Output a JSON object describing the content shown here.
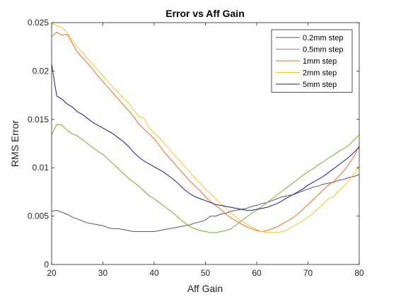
{
  "chart_data": {
    "type": "line",
    "title": "Error vs Aff Gain",
    "xlabel": "Aff Gain",
    "ylabel": "RMS Error",
    "xlim": [
      20,
      80
    ],
    "ylim": [
      0,
      0.025
    ],
    "xticks": [
      "20",
      "30",
      "40",
      "50",
      "60",
      "70",
      "80"
    ],
    "yticks": [
      "0",
      "0.005",
      "0.01",
      "0.015",
      "0.02",
      "0.025"
    ],
    "grid": false,
    "legend_position": "top-right",
    "series": [
      {
        "name": "0.2mm step",
        "color": "#6b4a6b",
        "points": [
          [
            20,
            0.0055
          ],
          [
            21,
            0.0056
          ],
          [
            22,
            0.0054
          ],
          [
            23,
            0.0052
          ],
          [
            24,
            0.0049
          ],
          [
            25,
            0.0047
          ],
          [
            26,
            0.0045
          ],
          [
            27,
            0.0043
          ],
          [
            28,
            0.0042
          ],
          [
            29,
            0.0041
          ],
          [
            30,
            0.004
          ],
          [
            31,
            0.0038
          ],
          [
            32,
            0.0037
          ],
          [
            33,
            0.0037
          ],
          [
            34,
            0.0036
          ],
          [
            35,
            0.0035
          ],
          [
            36,
            0.0034
          ],
          [
            37,
            0.0034
          ],
          [
            38,
            0.0034
          ],
          [
            39,
            0.0034
          ],
          [
            40,
            0.0034
          ],
          [
            41,
            0.0035
          ],
          [
            42,
            0.0036
          ],
          [
            43,
            0.0037
          ],
          [
            44,
            0.0038
          ],
          [
            45,
            0.0039
          ],
          [
            46,
            0.004
          ],
          [
            47,
            0.0041
          ],
          [
            48,
            0.0043
          ],
          [
            49,
            0.0044
          ],
          [
            50,
            0.0046
          ],
          [
            51,
            0.005
          ],
          [
            52,
            0.005
          ],
          [
            53,
            0.0052
          ],
          [
            54,
            0.0053
          ],
          [
            55,
            0.0055
          ],
          [
            56,
            0.0056
          ],
          [
            57,
            0.0057
          ],
          [
            58,
            0.0058
          ],
          [
            59,
            0.006
          ],
          [
            60,
            0.0061
          ],
          [
            61,
            0.0063
          ],
          [
            62,
            0.0064
          ],
          [
            63,
            0.0066
          ],
          [
            64,
            0.0068
          ],
          [
            65,
            0.007
          ],
          [
            66,
            0.0071
          ],
          [
            67,
            0.0072
          ],
          [
            68,
            0.0074
          ],
          [
            69,
            0.0076
          ],
          [
            70,
            0.0078
          ],
          [
            71,
            0.008
          ],
          [
            72,
            0.0081
          ],
          [
            73,
            0.0083
          ],
          [
            74,
            0.0084
          ],
          [
            75,
            0.0085
          ],
          [
            76,
            0.0087
          ],
          [
            77,
            0.0088
          ],
          [
            78,
            0.009
          ],
          [
            79,
            0.0091
          ],
          [
            80,
            0.0093
          ]
        ]
      },
      {
        "name": "0.5mm step",
        "color": "#77ac30",
        "points": [
          [
            20,
            0.0134
          ],
          [
            21,
            0.0145
          ],
          [
            22,
            0.0144
          ],
          [
            23,
            0.0139
          ],
          [
            24,
            0.0135
          ],
          [
            25,
            0.0133
          ],
          [
            26,
            0.0129
          ],
          [
            27,
            0.0125
          ],
          [
            28,
            0.0121
          ],
          [
            29,
            0.0117
          ],
          [
            30,
            0.0114
          ],
          [
            31,
            0.0109
          ],
          [
            32,
            0.0104
          ],
          [
            33,
            0.0099
          ],
          [
            34,
            0.0094
          ],
          [
            35,
            0.0089
          ],
          [
            36,
            0.0085
          ],
          [
            37,
            0.0081
          ],
          [
            38,
            0.0076
          ],
          [
            39,
            0.0071
          ],
          [
            40,
            0.0068
          ],
          [
            41,
            0.0064
          ],
          [
            42,
            0.006
          ],
          [
            43,
            0.0056
          ],
          [
            44,
            0.0052
          ],
          [
            45,
            0.0047
          ],
          [
            46,
            0.0043
          ],
          [
            47,
            0.0039
          ],
          [
            48,
            0.0037
          ],
          [
            49,
            0.0035
          ],
          [
            50,
            0.0034
          ],
          [
            51,
            0.0033
          ],
          [
            52,
            0.0033
          ],
          [
            53,
            0.0034
          ],
          [
            54,
            0.0035
          ],
          [
            55,
            0.0037
          ],
          [
            56,
            0.0041
          ],
          [
            57,
            0.0045
          ],
          [
            58,
            0.0049
          ],
          [
            59,
            0.0053
          ],
          [
            60,
            0.0056
          ],
          [
            61,
            0.006
          ],
          [
            62,
            0.0064
          ],
          [
            63,
            0.0068
          ],
          [
            64,
            0.0072
          ],
          [
            65,
            0.0076
          ],
          [
            66,
            0.008
          ],
          [
            67,
            0.0084
          ],
          [
            68,
            0.0088
          ],
          [
            69,
            0.0092
          ],
          [
            70,
            0.0096
          ],
          [
            71,
            0.0099
          ],
          [
            72,
            0.0103
          ],
          [
            73,
            0.0106
          ],
          [
            74,
            0.011
          ],
          [
            75,
            0.0113
          ],
          [
            76,
            0.0117
          ],
          [
            77,
            0.012
          ],
          [
            78,
            0.0123
          ],
          [
            79,
            0.0129
          ],
          [
            80,
            0.0134
          ]
        ]
      },
      {
        "name": "1mm step",
        "color": "#f26b2a",
        "points": [
          [
            20,
            0.0236
          ],
          [
            21,
            0.024
          ],
          [
            22,
            0.0237
          ],
          [
            23,
            0.0238
          ],
          [
            24,
            0.0229
          ],
          [
            25,
            0.022
          ],
          [
            26,
            0.0214
          ],
          [
            27,
            0.0208
          ],
          [
            28,
            0.0202
          ],
          [
            29,
            0.0195
          ],
          [
            30,
            0.0189
          ],
          [
            31,
            0.0183
          ],
          [
            32,
            0.0177
          ],
          [
            33,
            0.0171
          ],
          [
            34,
            0.0165
          ],
          [
            35,
            0.0159
          ],
          [
            36,
            0.0153
          ],
          [
            37,
            0.0145
          ],
          [
            38,
            0.014
          ],
          [
            39,
            0.0135
          ],
          [
            40,
            0.013
          ],
          [
            41,
            0.0123
          ],
          [
            42,
            0.0116
          ],
          [
            43,
            0.011
          ],
          [
            44,
            0.0104
          ],
          [
            45,
            0.0098
          ],
          [
            46,
            0.0092
          ],
          [
            47,
            0.0086
          ],
          [
            48,
            0.0081
          ],
          [
            49,
            0.0076
          ],
          [
            50,
            0.007
          ],
          [
            51,
            0.0065
          ],
          [
            52,
            0.0061
          ],
          [
            53,
            0.0057
          ],
          [
            54,
            0.0052
          ],
          [
            55,
            0.0048
          ],
          [
            56,
            0.0045
          ],
          [
            57,
            0.0042
          ],
          [
            58,
            0.0039
          ],
          [
            59,
            0.0037
          ],
          [
            60,
            0.0035
          ],
          [
            61,
            0.0034
          ],
          [
            62,
            0.0035
          ],
          [
            63,
            0.0037
          ],
          [
            64,
            0.0039
          ],
          [
            65,
            0.0042
          ],
          [
            66,
            0.0045
          ],
          [
            67,
            0.0048
          ],
          [
            68,
            0.0052
          ],
          [
            69,
            0.0057
          ],
          [
            70,
            0.0062
          ],
          [
            71,
            0.0067
          ],
          [
            72,
            0.0072
          ],
          [
            73,
            0.0077
          ],
          [
            74,
            0.0082
          ],
          [
            75,
            0.0086
          ],
          [
            76,
            0.0091
          ],
          [
            77,
            0.0097
          ],
          [
            78,
            0.0104
          ],
          [
            79,
            0.0112
          ],
          [
            80,
            0.0123
          ]
        ]
      },
      {
        "name": "2mm step",
        "color": "#f8c431",
        "points": [
          [
            20,
            0.0249
          ],
          [
            21,
            0.0247
          ],
          [
            22,
            0.0245
          ],
          [
            23,
            0.024
          ],
          [
            24,
            0.0232
          ],
          [
            25,
            0.0225
          ],
          [
            26,
            0.0219
          ],
          [
            27,
            0.0213
          ],
          [
            28,
            0.0207
          ],
          [
            29,
            0.0201
          ],
          [
            30,
            0.0195
          ],
          [
            31,
            0.0189
          ],
          [
            32,
            0.0183
          ],
          [
            33,
            0.0178
          ],
          [
            34,
            0.0172
          ],
          [
            35,
            0.0167
          ],
          [
            36,
            0.016
          ],
          [
            37,
            0.0153
          ],
          [
            38,
            0.0151
          ],
          [
            39,
            0.0141
          ],
          [
            40,
            0.0136
          ],
          [
            41,
            0.0131
          ],
          [
            42,
            0.0125
          ],
          [
            43,
            0.0119
          ],
          [
            44,
            0.0113
          ],
          [
            45,
            0.0107
          ],
          [
            46,
            0.0101
          ],
          [
            47,
            0.0095
          ],
          [
            48,
            0.0089
          ],
          [
            49,
            0.0084
          ],
          [
            50,
            0.0078
          ],
          [
            51,
            0.0073
          ],
          [
            52,
            0.0068
          ],
          [
            53,
            0.0063
          ],
          [
            54,
            0.0058
          ],
          [
            55,
            0.0053
          ],
          [
            56,
            0.0049
          ],
          [
            57,
            0.0045
          ],
          [
            58,
            0.0042
          ],
          [
            59,
            0.0039
          ],
          [
            60,
            0.0036
          ],
          [
            61,
            0.0034
          ],
          [
            62,
            0.0033
          ],
          [
            63,
            0.0033
          ],
          [
            64,
            0.0033
          ],
          [
            65,
            0.0034
          ],
          [
            66,
            0.0036
          ],
          [
            67,
            0.0039
          ],
          [
            68,
            0.0042
          ],
          [
            69,
            0.0045
          ],
          [
            70,
            0.0049
          ],
          [
            71,
            0.0053
          ],
          [
            72,
            0.0058
          ],
          [
            73,
            0.0063
          ],
          [
            74,
            0.0068
          ],
          [
            75,
            0.007
          ],
          [
            76,
            0.0076
          ],
          [
            77,
            0.0081
          ],
          [
            78,
            0.0087
          ],
          [
            79,
            0.0094
          ],
          [
            80,
            0.0102
          ]
        ]
      },
      {
        "name": "5mm step",
        "color": "#1c1a83",
        "points": [
          [
            20,
            0.0207
          ],
          [
            21,
            0.0174
          ],
          [
            22,
            0.0171
          ],
          [
            23,
            0.0166
          ],
          [
            24,
            0.0163
          ],
          [
            25,
            0.0158
          ],
          [
            26,
            0.0155
          ],
          [
            27,
            0.0151
          ],
          [
            28,
            0.0147
          ],
          [
            29,
            0.0144
          ],
          [
            30,
            0.0141
          ],
          [
            31,
            0.0138
          ],
          [
            32,
            0.0135
          ],
          [
            33,
            0.0131
          ],
          [
            34,
            0.0127
          ],
          [
            35,
            0.0122
          ],
          [
            36,
            0.0116
          ],
          [
            37,
            0.0111
          ],
          [
            38,
            0.0107
          ],
          [
            39,
            0.0104
          ],
          [
            40,
            0.0101
          ],
          [
            41,
            0.0098
          ],
          [
            42,
            0.0095
          ],
          [
            43,
            0.0091
          ],
          [
            44,
            0.0087
          ],
          [
            45,
            0.0082
          ],
          [
            46,
            0.0077
          ],
          [
            47,
            0.0073
          ],
          [
            48,
            0.007
          ],
          [
            49,
            0.0068
          ],
          [
            50,
            0.0066
          ],
          [
            51,
            0.0064
          ],
          [
            52,
            0.0062
          ],
          [
            53,
            0.0061
          ],
          [
            54,
            0.006
          ],
          [
            55,
            0.0059
          ],
          [
            56,
            0.0058
          ],
          [
            57,
            0.0057
          ],
          [
            58,
            0.0056
          ],
          [
            59,
            0.0056
          ],
          [
            60,
            0.0057
          ],
          [
            61,
            0.0058
          ],
          [
            62,
            0.0059
          ],
          [
            63,
            0.0061
          ],
          [
            64,
            0.0063
          ],
          [
            65,
            0.0066
          ],
          [
            66,
            0.0069
          ],
          [
            67,
            0.0072
          ],
          [
            68,
            0.0075
          ],
          [
            69,
            0.0078
          ],
          [
            70,
            0.0082
          ],
          [
            71,
            0.0085
          ],
          [
            72,
            0.0088
          ],
          [
            73,
            0.0091
          ],
          [
            74,
            0.0095
          ],
          [
            75,
            0.0099
          ],
          [
            76,
            0.0103
          ],
          [
            77,
            0.0107
          ],
          [
            78,
            0.0111
          ],
          [
            79,
            0.0116
          ],
          [
            80,
            0.0121
          ]
        ]
      }
    ]
  }
}
